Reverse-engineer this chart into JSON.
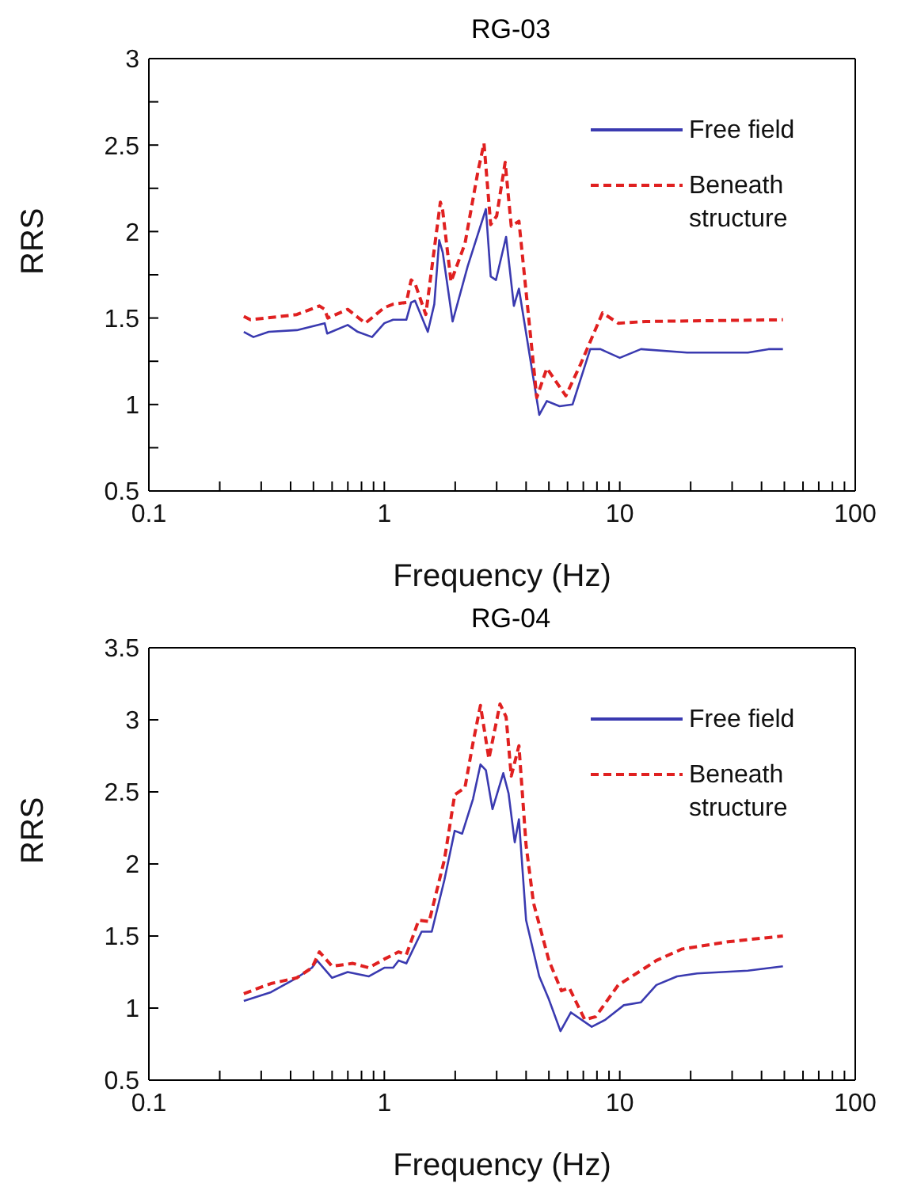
{
  "chart_data": [
    {
      "type": "line",
      "title": "RG-03",
      "xlabel": "Frequency (Hz)",
      "ylabel": "RRS",
      "log": "x",
      "grid": false,
      "legend": "top right",
      "marker": "none",
      "xlim": [
        0.1,
        100
      ],
      "xticks": [
        0.1,
        {
          "value": 0.2,
          "label": null
        },
        {
          "value": 0.3,
          "label": null
        },
        {
          "value": 0.4,
          "label": null
        },
        {
          "value": 0.5,
          "label": null
        },
        {
          "value": 0.6,
          "label": null
        },
        {
          "value": 0.7,
          "label": null
        },
        {
          "value": 0.8,
          "label": null
        },
        {
          "value": 0.9,
          "label": null
        },
        1,
        {
          "value": 2,
          "label": null
        },
        {
          "value": 3,
          "label": null
        },
        {
          "value": 4,
          "label": null
        },
        {
          "value": 5,
          "label": null
        },
        {
          "value": 6,
          "label": null
        },
        {
          "value": 7,
          "label": null
        },
        {
          "value": 8,
          "label": null
        },
        {
          "value": 9,
          "label": null
        },
        10,
        {
          "value": 20,
          "label": null
        },
        {
          "value": 30,
          "label": null
        },
        {
          "value": 40,
          "label": null
        },
        {
          "value": 50,
          "label": null
        },
        {
          "value": 60,
          "label": null
        },
        {
          "value": 70,
          "label": null
        },
        {
          "value": 80,
          "label": null
        },
        {
          "value": 90,
          "label": null
        },
        100
      ],
      "ylim": [
        0.5,
        3
      ],
      "yticks": [
        0.5,
        {
          "value": 0.75,
          "label": null
        },
        1,
        {
          "value": 1.25,
          "label": null
        },
        1.5,
        {
          "value": 1.75,
          "label": null
        },
        2,
        {
          "value": 2.25,
          "label": null
        },
        2.5,
        {
          "value": 2.75,
          "label": null
        },
        3
      ],
      "series": [
        {
          "name": "Free field",
          "color": "#3a3ab0",
          "line_style": "solid",
          "x": [
            0.253,
            0.278,
            0.323,
            0.425,
            0.558,
            0.572,
            0.699,
            0.771,
            0.887,
            1.0,
            1.09,
            1.24,
            1.3,
            1.35,
            1.53,
            1.63,
            1.71,
            1.77,
            1.95,
            2.26,
            2.7,
            2.83,
            2.98,
            3.29,
            3.55,
            3.73,
            4.55,
            4.9,
            5.55,
            6.3,
            7.49,
            8.28,
            10,
            12.3,
            19.3,
            35,
            42.8,
            49.3
          ],
          "values": [
            1.42,
            1.39,
            1.42,
            1.43,
            1.47,
            1.41,
            1.46,
            1.42,
            1.39,
            1.47,
            1.49,
            1.49,
            1.59,
            1.6,
            1.42,
            1.58,
            1.95,
            1.88,
            1.48,
            1.8,
            2.13,
            1.74,
            1.72,
            1.97,
            1.57,
            1.67,
            0.94,
            1.02,
            0.99,
            1.0,
            1.32,
            1.32,
            1.27,
            1.32,
            1.3,
            1.3,
            1.32,
            1.32
          ]
        },
        {
          "name": "Beneath structure",
          "color": "#e02020",
          "line_style": "dashed",
          "x": [
            0.253,
            0.27,
            0.425,
            0.53,
            0.558,
            0.575,
            0.699,
            0.83,
            1.0,
            1.09,
            1.24,
            1.3,
            1.35,
            1.5,
            1.73,
            1.77,
            1.92,
            2.2,
            2.5,
            2.65,
            2.83,
            3.0,
            3.26,
            3.46,
            3.73,
            4.44,
            4.9,
            5.9,
            6.8,
            8.45,
            9.85,
            12.9,
            49.3
          ],
          "values": [
            1.51,
            1.49,
            1.52,
            1.57,
            1.55,
            1.5,
            1.55,
            1.47,
            1.56,
            1.58,
            1.59,
            1.72,
            1.7,
            1.52,
            2.17,
            2.12,
            1.71,
            1.93,
            2.35,
            2.51,
            2.04,
            2.09,
            2.4,
            2.03,
            2.06,
            1.04,
            1.21,
            1.05,
            1.23,
            1.53,
            1.47,
            1.48,
            1.49
          ]
        }
      ]
    },
    {
      "type": "line",
      "title": "RG-04",
      "xlabel": "Frequency (Hz)",
      "ylabel": "RRS",
      "log": "x",
      "grid": false,
      "legend": "top right",
      "marker": "none",
      "xlim": [
        0.1,
        100
      ],
      "xticks": [
        0.1,
        {
          "value": 0.2,
          "label": null
        },
        {
          "value": 0.3,
          "label": null
        },
        {
          "value": 0.4,
          "label": null
        },
        {
          "value": 0.5,
          "label": null
        },
        {
          "value": 0.6,
          "label": null
        },
        {
          "value": 0.7,
          "label": null
        },
        {
          "value": 0.8,
          "label": null
        },
        {
          "value": 0.9,
          "label": null
        },
        1,
        {
          "value": 2,
          "label": null
        },
        {
          "value": 3,
          "label": null
        },
        {
          "value": 4,
          "label": null
        },
        {
          "value": 5,
          "label": null
        },
        {
          "value": 6,
          "label": null
        },
        {
          "value": 7,
          "label": null
        },
        {
          "value": 8,
          "label": null
        },
        {
          "value": 9,
          "label": null
        },
        10,
        {
          "value": 20,
          "label": null
        },
        {
          "value": 30,
          "label": null
        },
        {
          "value": 40,
          "label": null
        },
        {
          "value": 50,
          "label": null
        },
        {
          "value": 60,
          "label": null
        },
        {
          "value": 70,
          "label": null
        },
        {
          "value": 80,
          "label": null
        },
        {
          "value": 90,
          "label": null
        },
        100
      ],
      "ylim": [
        0.5,
        3.5
      ],
      "yticks": [
        0.5,
        1,
        1.5,
        2,
        2.5,
        3,
        3.5
      ],
      "series": [
        {
          "name": "Free field",
          "color": "#3a3ab0",
          "line_style": "solid",
          "x": [
            0.253,
            0.33,
            0.425,
            0.493,
            0.518,
            0.6,
            0.699,
            0.86,
            1.0,
            1.09,
            1.15,
            1.24,
            1.44,
            1.59,
            1.8,
            1.99,
            2.14,
            2.38,
            2.56,
            2.7,
            2.88,
            3.2,
            3.37,
            3.58,
            3.73,
            4.0,
            4.55,
            5.0,
            5.6,
            6.2,
            7.6,
            8.7,
            10.4,
            12.3,
            14.3,
            17.5,
            21.3,
            35,
            49.3
          ],
          "values": [
            1.05,
            1.11,
            1.21,
            1.28,
            1.33,
            1.21,
            1.25,
            1.22,
            1.28,
            1.28,
            1.33,
            1.31,
            1.53,
            1.53,
            1.89,
            2.23,
            2.21,
            2.45,
            2.69,
            2.65,
            2.38,
            2.63,
            2.49,
            2.15,
            2.31,
            1.61,
            1.22,
            1.06,
            0.84,
            0.97,
            0.87,
            0.92,
            1.02,
            1.04,
            1.16,
            1.22,
            1.24,
            1.26,
            1.29
          ]
        },
        {
          "name": "Beneath structure",
          "color": "#e02020",
          "line_style": "dashed",
          "x": [
            0.253,
            0.33,
            0.425,
            0.493,
            0.53,
            0.6,
            0.735,
            0.86,
            1.0,
            1.15,
            1.24,
            1.4,
            1.55,
            1.8,
            1.99,
            2.2,
            2.38,
            2.56,
            2.78,
            3.1,
            3.29,
            3.46,
            3.73,
            4.0,
            4.3,
            5.0,
            5.65,
            6.1,
            7.1,
            7.9,
            9.85,
            12.3,
            14.3,
            18.4,
            28.8,
            49.3
          ],
          "values": [
            1.1,
            1.17,
            1.21,
            1.28,
            1.39,
            1.29,
            1.31,
            1.28,
            1.34,
            1.39,
            1.37,
            1.61,
            1.6,
            2.03,
            2.48,
            2.53,
            2.84,
            3.1,
            2.73,
            3.11,
            3.02,
            2.61,
            2.82,
            2.13,
            1.73,
            1.33,
            1.12,
            1.14,
            0.92,
            0.94,
            1.16,
            1.26,
            1.33,
            1.41,
            1.46,
            1.5
          ]
        }
      ]
    }
  ]
}
